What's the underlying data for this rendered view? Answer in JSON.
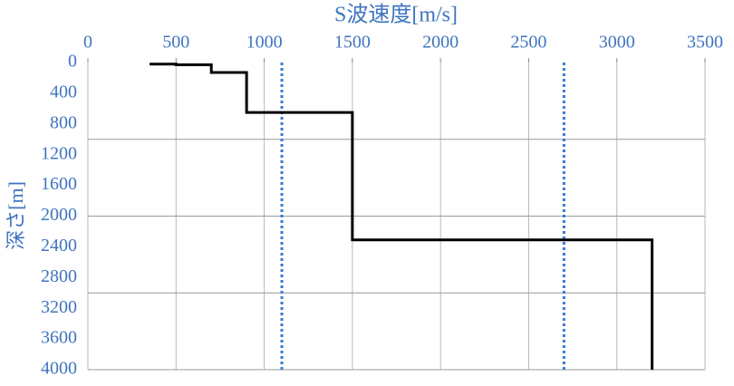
{
  "chart_data": {
    "type": "line",
    "xlabel": "S波速度[m/s]",
    "ylabel": "深さ[m]",
    "xlim": [
      0,
      3500
    ],
    "xticks": [
      0,
      500,
      1000,
      1500,
      2000,
      2500,
      3000,
      3500
    ],
    "ylim": [
      0,
      4000
    ],
    "y_inverted": true,
    "yticks": [
      0,
      400,
      800,
      1200,
      1600,
      2000,
      2400,
      2800,
      3200,
      3600,
      4000
    ],
    "ygrid": [
      1000,
      2000,
      3000
    ],
    "grid": true,
    "reference_lines_x": [
      1100,
      2700
    ],
    "reference_color": "#3a78d4",
    "series": [
      {
        "color": "#000000",
        "x": [
          350,
          500,
          500,
          700,
          700,
          900,
          900,
          1500,
          1500,
          3200,
          3200
        ],
        "values": [
          20,
          20,
          30,
          30,
          130,
          130,
          650,
          650,
          2310,
          2310,
          4000
        ]
      }
    ]
  }
}
